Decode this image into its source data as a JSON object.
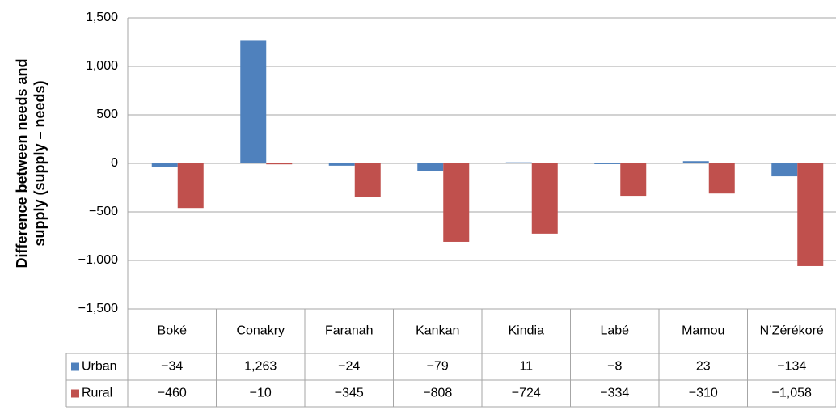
{
  "chart_data": {
    "type": "bar",
    "y_label_lines": [
      "Difference between needs and",
      "supply (supply – needs)"
    ],
    "categories": [
      "Boké",
      "Conakry",
      "Faranah",
      "Kankan",
      "Kindia",
      "Labé",
      "Mamou",
      "N’Zérékoré"
    ],
    "series": [
      {
        "name": "Urban",
        "color": "#4f81bd",
        "values": [
          -34,
          1263,
          -24,
          -79,
          11,
          -8,
          23,
          -134
        ],
        "value_labels": [
          "−34",
          "1,263",
          "−24",
          "−79",
          "11",
          "−8",
          "23",
          "−134"
        ]
      },
      {
        "name": "Rural",
        "color": "#c0504d",
        "values": [
          -460,
          -10,
          -345,
          -808,
          -724,
          -334,
          -310,
          -1058
        ],
        "value_labels": [
          "−460",
          "−10",
          "−345",
          "−808",
          "−724",
          "−334",
          "−310",
          "−1,058"
        ]
      }
    ],
    "ylim": [
      -1500,
      1500
    ],
    "yticks": [
      {
        "value": 1500,
        "label": "1,500"
      },
      {
        "value": 1000,
        "label": "1,000"
      },
      500,
      0,
      {
        "value": -500,
        "label": "−500"
      },
      {
        "value": -1000,
        "label": "−1,000"
      },
      {
        "value": -1500,
        "label": "−1,500"
      }
    ],
    "grid": true
  }
}
